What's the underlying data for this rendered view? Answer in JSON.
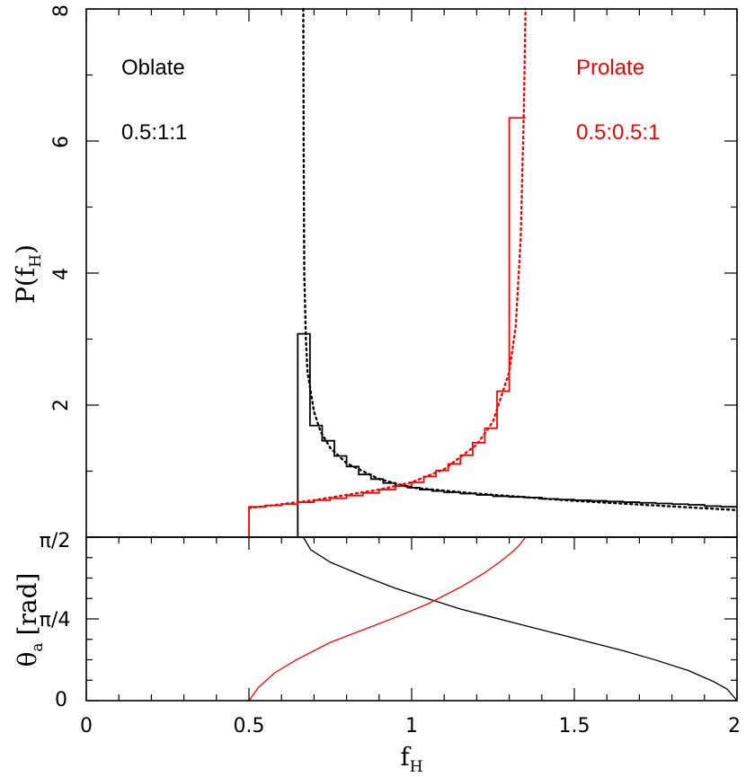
{
  "chart_data": {
    "type": "line",
    "colors": {
      "oblate": "#000000",
      "prolate": "#ff0000"
    },
    "top_panel": {
      "ylabel": "P(f_H)",
      "ylabel_main": "P(f",
      "ylabel_sub": "H",
      "ylabel_close": ")",
      "xlim": [
        0,
        2
      ],
      "ylim": [
        0,
        8
      ],
      "yticks_major": [
        2,
        4,
        6,
        8
      ],
      "ytick_labels": [
        "2",
        "4",
        "6",
        "8"
      ],
      "annotations": [
        {
          "text": "Oblate",
          "series": "oblate",
          "position": "top-left"
        },
        {
          "text": "0.5:1:1",
          "series": "oblate",
          "position": "top-left"
        },
        {
          "text": "Prolate",
          "series": "prolate",
          "position": "top-right"
        },
        {
          "text": "0.5:0.5:1",
          "series": "prolate",
          "position": "top-right"
        }
      ],
      "series": [
        {
          "name": "Oblate histogram",
          "color": "#000000",
          "style": "step",
          "bin_edges": [
            0.65,
            0.6875,
            0.725,
            0.7625,
            0.8,
            0.8375,
            0.875,
            0.9125,
            0.95,
            0.9875,
            1.025,
            1.0625,
            1.1,
            1.15,
            1.2,
            1.25,
            1.3,
            1.35,
            1.4,
            1.45,
            1.5,
            1.55,
            1.6,
            1.65,
            1.7,
            1.75,
            1.8,
            1.85,
            1.9,
            1.95,
            2.0
          ],
          "values": [
            3.08,
            1.69,
            1.46,
            1.23,
            1.07,
            0.95,
            0.88,
            0.82,
            0.78,
            0.75,
            0.72,
            0.7,
            0.68,
            0.66,
            0.64,
            0.62,
            0.61,
            0.6,
            0.58,
            0.57,
            0.56,
            0.55,
            0.54,
            0.53,
            0.52,
            0.51,
            0.5,
            0.49,
            0.47,
            0.46
          ]
        },
        {
          "name": "Prolate histogram",
          "color": "#ff0000",
          "style": "step",
          "bin_edges": [
            0.5,
            0.55,
            0.6,
            0.65,
            0.7,
            0.75,
            0.8,
            0.85,
            0.9,
            0.95,
            1.0,
            1.0375,
            1.075,
            1.1125,
            1.15,
            1.1875,
            1.225,
            1.2625,
            1.3,
            1.35
          ],
          "values": [
            0.46,
            0.48,
            0.5,
            0.53,
            0.56,
            0.59,
            0.63,
            0.67,
            0.72,
            0.77,
            0.83,
            0.92,
            1.01,
            1.11,
            1.24,
            1.43,
            1.65,
            2.21,
            6.35
          ]
        },
        {
          "name": "Oblate analytic",
          "color": "#000000",
          "style": "dotted",
          "x": [
            0.667,
            0.668,
            0.67,
            0.675,
            0.68,
            0.69,
            0.7,
            0.72,
            0.75,
            0.8,
            0.9,
            1.0,
            1.2,
            1.5,
            2.0
          ],
          "y": [
            8.0,
            6.0,
            4.0,
            3.0,
            2.5,
            2.2,
            1.9,
            1.6,
            1.35,
            1.12,
            0.88,
            0.75,
            0.66,
            0.55,
            0.41
          ]
        },
        {
          "name": "Prolate analytic",
          "color": "#ff0000",
          "style": "dotted",
          "x": [
            0.5,
            0.6,
            0.7,
            0.8,
            0.9,
            1.0,
            1.1,
            1.2,
            1.25,
            1.3,
            1.32,
            1.335,
            1.345,
            1.35
          ],
          "y": [
            0.44,
            0.5,
            0.56,
            0.64,
            0.72,
            0.83,
            1.03,
            1.4,
            1.75,
            2.5,
            3.2,
            4.5,
            6.5,
            8.0
          ]
        }
      ]
    },
    "bottom_panel": {
      "xlabel": "f_H",
      "xlabel_main": "f",
      "xlabel_sub": "H",
      "ylabel": "θ_a [rad]",
      "ylabel_main": "θ",
      "ylabel_sub": "a",
      "ylabel_unit": "[rad]",
      "xlim": [
        0,
        2
      ],
      "ylim": [
        0,
        1.5708
      ],
      "xticks_major": [
        0,
        0.5,
        1,
        1.5,
        2
      ],
      "xtick_labels": [
        "0",
        "0.5",
        "1",
        "1.5",
        "2"
      ],
      "yticks_major": [
        0,
        0.7854,
        1.5708
      ],
      "ytick_labels": [
        "0",
        "π/4",
        "π/2"
      ],
      "series": [
        {
          "name": "Oblate theta_a",
          "color": "#000000",
          "style": "line",
          "x": [
            0.667,
            0.69,
            0.75,
            0.85,
            0.95,
            1.05,
            1.15,
            1.25,
            1.35,
            1.45,
            1.55,
            1.65,
            1.75,
            1.85,
            1.93,
            1.97,
            2.0
          ],
          "y": [
            1.5708,
            1.45,
            1.33,
            1.2,
            1.08,
            0.98,
            0.88,
            0.8,
            0.72,
            0.64,
            0.56,
            0.48,
            0.39,
            0.29,
            0.18,
            0.11,
            0.0
          ]
        },
        {
          "name": "Prolate theta_a",
          "color": "#ff0000",
          "style": "line",
          "x": [
            0.5,
            0.53,
            0.58,
            0.65,
            0.75,
            0.85,
            0.95,
            1.05,
            1.15,
            1.22,
            1.27,
            1.31,
            1.33,
            1.345,
            1.35
          ],
          "y": [
            0.0,
            0.13,
            0.27,
            0.4,
            0.56,
            0.68,
            0.8,
            0.93,
            1.09,
            1.22,
            1.33,
            1.43,
            1.49,
            1.55,
            1.5708
          ]
        }
      ]
    }
  }
}
